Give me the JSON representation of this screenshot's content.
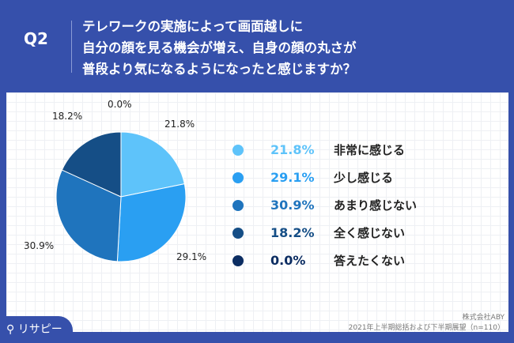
{
  "header": {
    "q": "Q2",
    "lines": [
      "テレワークの実施によって画面越しに",
      "自分の顔を見る機会が増え、自身の顔の丸さが",
      "普段より気になるようになったと感じますか？"
    ]
  },
  "chart_data": {
    "type": "pie",
    "start": "top",
    "direction": "clockwise",
    "categories": [
      "非常に感じる",
      "少し感じる",
      "あまり感じない",
      "全く感じない",
      "答えたくない"
    ],
    "values": [
      21.8,
      29.1,
      30.9,
      18.2,
      0.0
    ],
    "labels": [
      "21.8%",
      "29.1%",
      "30.9%",
      "18.2%",
      "0.0%"
    ],
    "colors": [
      "#5ec3fa",
      "#2a9ff2",
      "#1f74bd",
      "#154e86",
      "#0c2d62"
    ]
  },
  "footer": {
    "company": "株式会社ABY",
    "survey": "2021年上半期総括および下半期展望（n=110）",
    "logo": "リサピー"
  }
}
